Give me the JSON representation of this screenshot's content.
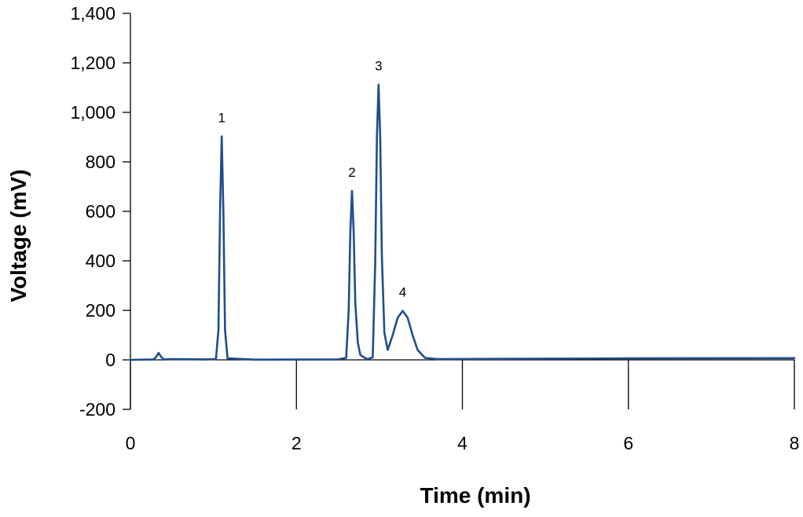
{
  "chart_data": {
    "type": "line",
    "xlabel": "Time (min)",
    "ylabel": "Voltage (mV)",
    "xlim": [
      0,
      8
    ],
    "ylim": [
      -200,
      1400
    ],
    "x_ticks": [
      0,
      2,
      4,
      6,
      8
    ],
    "x_tick_labels": [
      "0",
      "2",
      "4",
      "6",
      "8"
    ],
    "y_ticks": [
      -200,
      0,
      200,
      400,
      600,
      800,
      1000,
      1200,
      1400
    ],
    "y_tick_labels": [
      "-200",
      "0",
      "200",
      "400",
      "600",
      "800",
      "1,000",
      "1,200",
      "1,400"
    ],
    "grid": false,
    "legend": "none",
    "line_color": "#1f4e8c",
    "series": [
      {
        "points": [
          [
            0,
            0
          ],
          [
            0.28,
            2
          ],
          [
            0.31,
            12
          ],
          [
            0.34,
            28
          ],
          [
            0.37,
            12
          ],
          [
            0.4,
            2
          ],
          [
            0.5,
            3
          ],
          [
            0.9,
            2
          ],
          [
            1.03,
            3
          ],
          [
            1.06,
            120
          ],
          [
            1.08,
            600
          ],
          [
            1.1,
            903
          ],
          [
            1.12,
            600
          ],
          [
            1.14,
            120
          ],
          [
            1.17,
            6
          ],
          [
            1.5,
            1
          ],
          [
            2.5,
            2
          ],
          [
            2.6,
            8
          ],
          [
            2.63,
            200
          ],
          [
            2.65,
            520
          ],
          [
            2.67,
            683
          ],
          [
            2.69,
            520
          ],
          [
            2.71,
            230
          ],
          [
            2.74,
            70
          ],
          [
            2.77,
            20
          ],
          [
            2.85,
            3
          ],
          [
            2.92,
            10
          ],
          [
            2.95,
            400
          ],
          [
            2.97,
            900
          ],
          [
            2.99,
            1112
          ],
          [
            3.01,
            900
          ],
          [
            3.03,
            420
          ],
          [
            3.06,
            110
          ],
          [
            3.1,
            40
          ],
          [
            3.16,
            100
          ],
          [
            3.22,
            170
          ],
          [
            3.28,
            198
          ],
          [
            3.34,
            170
          ],
          [
            3.4,
            100
          ],
          [
            3.46,
            40
          ],
          [
            3.55,
            8
          ],
          [
            3.7,
            3
          ],
          [
            4.5,
            4
          ],
          [
            6.0,
            6
          ],
          [
            8.0,
            7
          ]
        ]
      }
    ],
    "annotations": [
      {
        "text": "1",
        "x": 1.1,
        "y": 903
      },
      {
        "text": "2",
        "x": 2.67,
        "y": 683
      },
      {
        "text": "3",
        "x": 2.99,
        "y": 1112
      },
      {
        "text": "4",
        "x": 3.28,
        "y": 198
      }
    ]
  }
}
